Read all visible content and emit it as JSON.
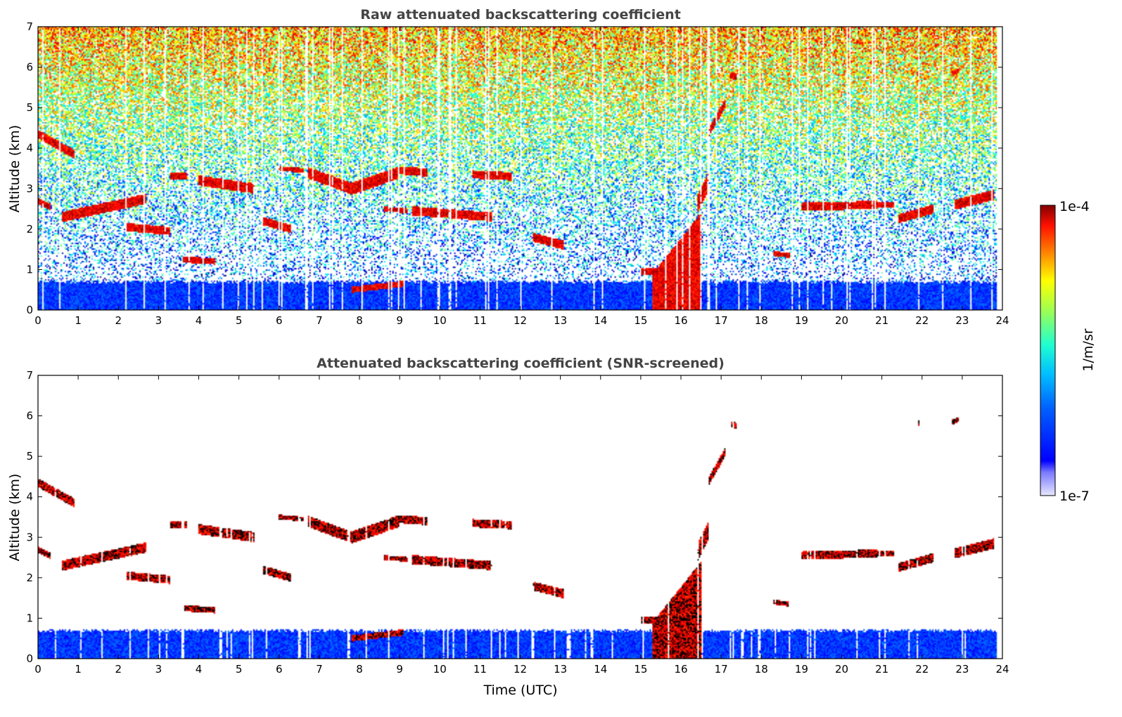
{
  "chart_data": [
    {
      "type": "heatmap",
      "title": "Raw attenuated backscattering coefficient",
      "xlabel": "",
      "ylabel": "Altitude (km)",
      "xlim": [
        0,
        24
      ],
      "ylim": [
        0,
        7
      ],
      "xticks": [
        "0",
        "1",
        "2",
        "3",
        "4",
        "5",
        "6",
        "7",
        "8",
        "9",
        "10",
        "11",
        "12",
        "13",
        "14",
        "15",
        "16",
        "17",
        "18",
        "19",
        "20",
        "21",
        "22",
        "23",
        "24"
      ],
      "yticks": [
        "0",
        "1",
        "2",
        "3",
        "4",
        "5",
        "6",
        "7"
      ],
      "screened": false
    },
    {
      "type": "heatmap",
      "title": "Attenuated backscattering coefficient (SNR-screened)",
      "xlabel": "Time (UTC)",
      "ylabel": "Altitude (km)",
      "xlim": [
        0,
        24
      ],
      "ylim": [
        0,
        7
      ],
      "xticks": [
        "0",
        "1",
        "2",
        "3",
        "4",
        "5",
        "6",
        "7",
        "8",
        "9",
        "10",
        "11",
        "12",
        "13",
        "14",
        "15",
        "16",
        "17",
        "18",
        "19",
        "20",
        "21",
        "22",
        "23",
        "24"
      ],
      "yticks": [
        "0",
        "1",
        "2",
        "3",
        "4",
        "5",
        "6",
        "7"
      ],
      "screened": true
    }
  ],
  "colorbar": {
    "label": "1/m/sr",
    "max_label": "1e-4",
    "min_label": "1e-7",
    "scale": "log",
    "colormap": "jet"
  },
  "features": {
    "boundary_layer": [
      0,
      0.7
    ],
    "cloud_layers": [
      {
        "t": [
          0.0,
          0.9
        ],
        "z": [
          4.35,
          3.85
        ],
        "thick": 0.22
      },
      {
        "t": [
          0.0,
          0.3
        ],
        "z": [
          2.7,
          2.55
        ],
        "thick": 0.15
      },
      {
        "t": [
          0.6,
          2.7
        ],
        "z": [
          2.3,
          2.75
        ],
        "thick": 0.25
      },
      {
        "t": [
          2.2,
          3.3
        ],
        "z": [
          2.05,
          1.95
        ],
        "thick": 0.2
      },
      {
        "t": [
          3.3,
          3.7
        ],
        "z": [
          3.3,
          3.3
        ],
        "thick": 0.18
      },
      {
        "t": [
          3.6,
          4.4
        ],
        "z": [
          1.25,
          1.2
        ],
        "thick": 0.15
      },
      {
        "t": [
          4.0,
          5.4
        ],
        "z": [
          3.2,
          3.0
        ],
        "thick": 0.25
      },
      {
        "t": [
          5.6,
          6.3
        ],
        "z": [
          2.2,
          2.0
        ],
        "thick": 0.2
      },
      {
        "t": [
          6.0,
          6.6
        ],
        "z": [
          3.5,
          3.45
        ],
        "thick": 0.12
      },
      {
        "t": [
          6.7,
          7.8
        ],
        "z": [
          3.4,
          3.0
        ],
        "thick": 0.28
      },
      {
        "t": [
          7.8,
          9.0
        ],
        "z": [
          3.0,
          3.4
        ],
        "thick": 0.3
      },
      {
        "t": [
          9.0,
          9.7
        ],
        "z": [
          3.45,
          3.4
        ],
        "thick": 0.2
      },
      {
        "t": [
          8.6,
          9.2
        ],
        "z": [
          2.5,
          2.45
        ],
        "thick": 0.12
      },
      {
        "t": [
          9.3,
          11.3
        ],
        "z": [
          2.45,
          2.3
        ],
        "thick": 0.22
      },
      {
        "t": [
          10.8,
          11.8
        ],
        "z": [
          3.35,
          3.3
        ],
        "thick": 0.2
      },
      {
        "t": [
          7.8,
          9.1
        ],
        "z": [
          0.5,
          0.65
        ],
        "thick": 0.15
      },
      {
        "t": [
          12.3,
          13.1
        ],
        "z": [
          1.8,
          1.6
        ],
        "thick": 0.22
      },
      {
        "t": [
          15.0,
          15.5
        ],
        "z": [
          0.95,
          0.95
        ],
        "thick": 0.2
      },
      {
        "t": [
          16.4,
          16.7
        ],
        "z": [
          2.6,
          3.2
        ],
        "thick": 0.45
      },
      {
        "t": [
          16.7,
          17.1
        ],
        "z": [
          4.4,
          5.1
        ],
        "thick": 0.22
      },
      {
        "t": [
          17.2,
          17.4
        ],
        "z": [
          5.8,
          5.75
        ],
        "thick": 0.15
      },
      {
        "t": [
          18.3,
          18.7
        ],
        "z": [
          1.4,
          1.35
        ],
        "thick": 0.12
      },
      {
        "t": [
          19.0,
          20.9
        ],
        "z": [
          2.55,
          2.6
        ],
        "thick": 0.2
      },
      {
        "t": [
          20.9,
          21.3
        ],
        "z": [
          2.6,
          2.6
        ],
        "thick": 0.12
      },
      {
        "t": [
          21.4,
          22.3
        ],
        "z": [
          2.25,
          2.5
        ],
        "thick": 0.22
      },
      {
        "t": [
          22.8,
          23.8
        ],
        "z": [
          2.6,
          2.85
        ],
        "thick": 0.25
      },
      {
        "t": [
          21.85,
          21.95
        ],
        "z": [
          5.85,
          5.8
        ],
        "thick": 0.12
      },
      {
        "t": [
          22.75,
          22.9
        ],
        "z": [
          5.85,
          5.9
        ],
        "thick": 0.12
      }
    ],
    "convective_plume": {
      "t": [
        15.3,
        16.5
      ],
      "z_top": 2.4
    },
    "data_end_hour": 23.85
  }
}
